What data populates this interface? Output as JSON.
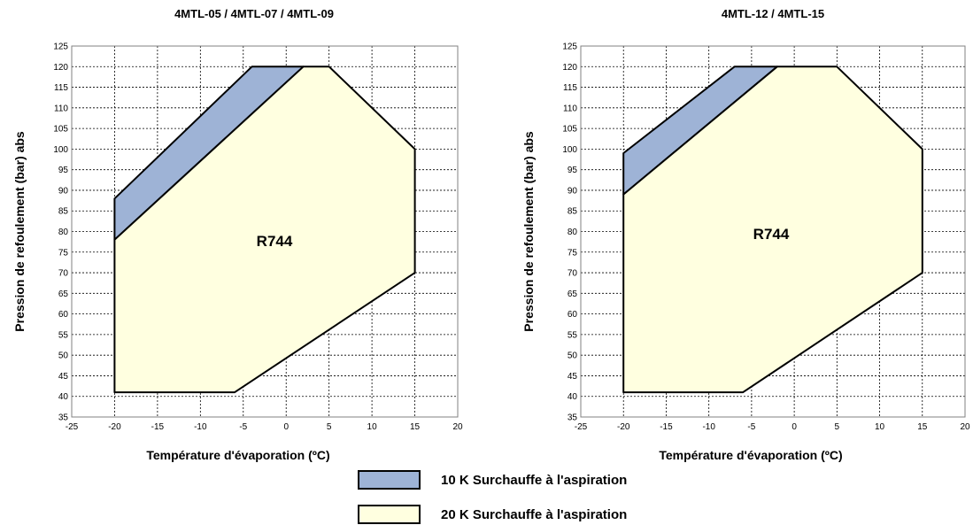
{
  "chart_data": [
    {
      "type": "area",
      "title": "4MTL-05 / 4MTL-07 / 4MTL-09",
      "xlabel": "Température d'évaporation (ºC)",
      "ylabel": "Pression de refoulement (bar) abs",
      "xlim": [
        -25,
        20
      ],
      "ylim": [
        35,
        125
      ],
      "x_ticks": [
        -25,
        -20,
        -15,
        -10,
        -5,
        0,
        5,
        10,
        15,
        20
      ],
      "y_ticks": [
        35,
        40,
        45,
        50,
        55,
        60,
        65,
        70,
        75,
        80,
        85,
        90,
        95,
        100,
        105,
        110,
        115,
        120,
        125
      ],
      "grid": true,
      "region_label": "R744",
      "series": [
        {
          "name": "10 K Surchauffe à l'aspiration",
          "color": "#9EB3D6",
          "points": [
            [
              -20,
              88
            ],
            [
              -20,
              78
            ],
            [
              2,
              120
            ],
            [
              -4,
              120
            ]
          ]
        },
        {
          "name": "20 K Surchauffe à l'aspiration",
          "color": "#FFFFE0",
          "points": [
            [
              -20,
              78
            ],
            [
              -20,
              41
            ],
            [
              -6,
              41
            ],
            [
              15,
              70
            ],
            [
              15,
              100
            ],
            [
              5,
              120
            ],
            [
              2,
              120
            ]
          ]
        }
      ]
    },
    {
      "type": "area",
      "title": "4MTL-12 / 4MTL-15",
      "xlabel": "Température d'évaporation (ºC)",
      "ylabel": "Pression de refoulement (bar) abs",
      "xlim": [
        -25,
        20
      ],
      "ylim": [
        35,
        125
      ],
      "x_ticks": [
        -25,
        -20,
        -15,
        -10,
        -5,
        0,
        5,
        10,
        15,
        20
      ],
      "y_ticks": [
        35,
        40,
        45,
        50,
        55,
        60,
        65,
        70,
        75,
        80,
        85,
        90,
        95,
        100,
        105,
        110,
        115,
        120,
        125
      ],
      "grid": true,
      "region_label": "R744",
      "series": [
        {
          "name": "10 K Surchauffe à l'aspiration",
          "color": "#9EB3D6",
          "points": [
            [
              -20,
              99
            ],
            [
              -20,
              89
            ],
            [
              -2,
              120
            ],
            [
              -7,
              120
            ]
          ]
        },
        {
          "name": "20 K Surchauffe à l'aspiration",
          "color": "#FFFFE0",
          "points": [
            [
              -20,
              89
            ],
            [
              -20,
              41
            ],
            [
              -6,
              41
            ],
            [
              15,
              70
            ],
            [
              15,
              100
            ],
            [
              5,
              120
            ],
            [
              -2,
              120
            ]
          ]
        }
      ]
    }
  ],
  "legend": [
    {
      "label": "10 K Surchauffe à l'aspiration",
      "color": "#9EB3D6"
    },
    {
      "label": "20 K Surchauffe à l'aspiration",
      "color": "#FFFFE0"
    }
  ]
}
